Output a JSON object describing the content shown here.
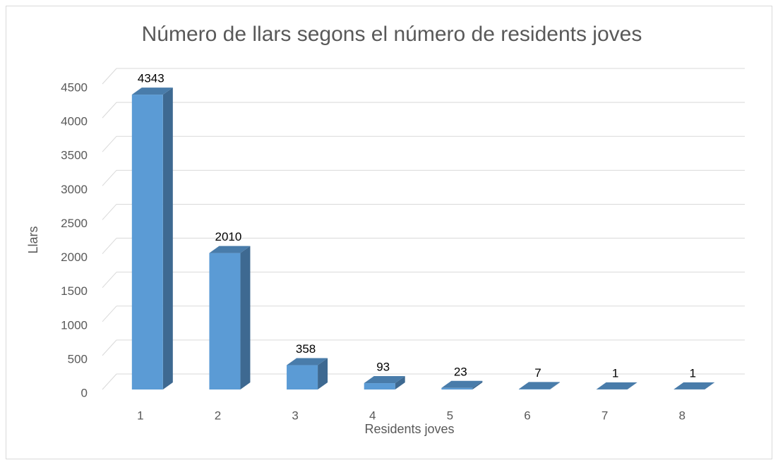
{
  "chart_data": {
    "type": "bar3d",
    "title": "Número de llars segons el número de residents joves",
    "x_label": "Residents joves",
    "y_label": "Llars",
    "categories": [
      "1",
      "2",
      "3",
      "4",
      "5",
      "6",
      "7",
      "8"
    ],
    "values": [
      4343,
      2010,
      358,
      93,
      23,
      7,
      1,
      1
    ],
    "color": "#5b9bd5",
    "ylim": [
      0,
      4500
    ],
    "yticks": [
      0,
      500,
      1000,
      1500,
      2000,
      2500,
      3000,
      3500,
      4000,
      4500
    ],
    "grid": true
  }
}
